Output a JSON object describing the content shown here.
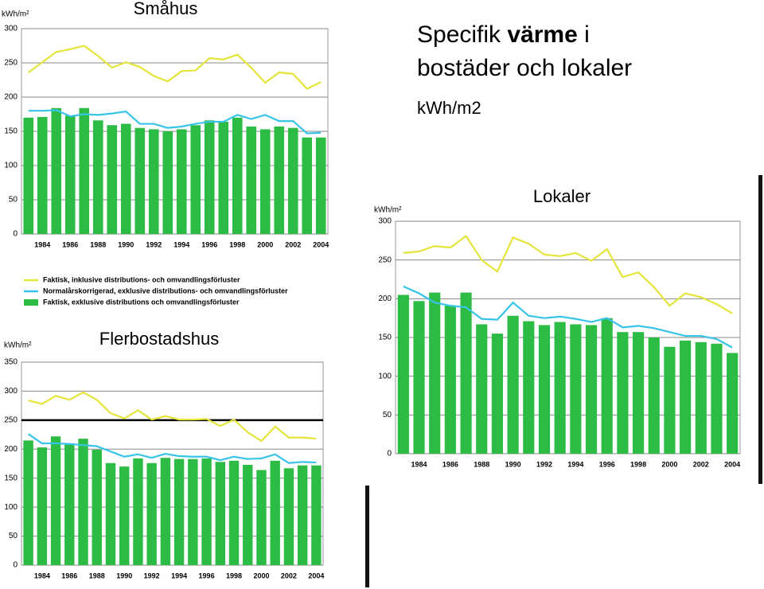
{
  "heading": {
    "line1": [
      "Specifik ",
      "värme",
      " i"
    ],
    "line2": "bostäder och lokaler",
    "unit": "kWh/m2"
  },
  "chart_data": [
    {
      "type": "bar",
      "title": "Småhus",
      "y_unit": "kWh/m²",
      "categories": [
        null,
        "1984",
        null,
        "1986",
        null,
        "1988",
        null,
        "1990",
        null,
        "1992",
        null,
        "1994",
        null,
        "1996",
        null,
        "1998",
        null,
        "2000",
        null,
        "2002",
        null,
        "2004"
      ],
      "ylim": [
        0,
        300
      ],
      "yticks": [
        0,
        50,
        100,
        150,
        200,
        250,
        300
      ],
      "grid": true,
      "series": [
        {
          "name": "Faktisk, inklusive distributions- och omvandlingsförluster",
          "type": "line",
          "color": "#e4e43a",
          "values": [
            236,
            251,
            266,
            270,
            275,
            260,
            243,
            251,
            244,
            231,
            223,
            238,
            239,
            257,
            255,
            262,
            243,
            221,
            236,
            234,
            212,
            222
          ]
        },
        {
          "name": "Normalårskorrigerad, exklusive distributions- och omvandlingsförluster",
          "type": "line",
          "color": "#38c4e8",
          "values": [
            180,
            180,
            181,
            172,
            175,
            174,
            176,
            179,
            161,
            161,
            155,
            157,
            161,
            164,
            164,
            174,
            168,
            174,
            165,
            165,
            147,
            148
          ]
        },
        {
          "name": "Faktisk, exklusive distributions och omvandlingsförluster",
          "type": "bar",
          "color": "#2cbc45",
          "values": [
            170,
            171,
            184,
            173,
            184,
            166,
            159,
            161,
            155,
            153,
            150,
            153,
            159,
            166,
            164,
            170,
            157,
            153,
            157,
            155,
            141,
            141
          ]
        }
      ]
    },
    {
      "type": "bar",
      "title": "Flerbostadshus",
      "y_unit": "kWh/m²",
      "categories": [
        null,
        "1984",
        null,
        "1986",
        null,
        "1988",
        null,
        "1990",
        null,
        "1992",
        null,
        "1994",
        null,
        "1996",
        null,
        "1998",
        null,
        "2000",
        null,
        "2002",
        null,
        "2004"
      ],
      "ylim": [
        0,
        350
      ],
      "yticks": [
        0,
        50,
        100,
        150,
        200,
        250,
        300,
        350
      ],
      "grid": true,
      "reference_line": 250,
      "series": [
        {
          "type": "line",
          "color": "#e4e43a",
          "values": [
            284,
            278,
            292,
            285,
            298,
            285,
            262,
            253,
            267,
            251,
            257,
            251,
            251,
            252,
            240,
            251,
            229,
            214,
            239,
            220,
            220,
            218
          ]
        },
        {
          "type": "line",
          "color": "#38c4e8",
          "values": [
            226,
            210,
            210,
            209,
            207,
            205,
            196,
            187,
            191,
            185,
            192,
            188,
            187,
            187,
            181,
            187,
            183,
            184,
            191,
            176,
            178,
            177
          ]
        },
        {
          "type": "bar",
          "color": "#2cbc45",
          "values": [
            215,
            203,
            222,
            210,
            218,
            199,
            176,
            170,
            184,
            176,
            185,
            183,
            183,
            184,
            178,
            180,
            173,
            164,
            180,
            167,
            172,
            172
          ]
        }
      ]
    },
    {
      "type": "bar",
      "title": "Lokaler",
      "y_unit": "kWh/m²",
      "categories": [
        null,
        "1984",
        null,
        "1986",
        null,
        "1988",
        null,
        "1990",
        null,
        "1992",
        null,
        "1994",
        null,
        "1996",
        null,
        "1998",
        null,
        "2000",
        null,
        "2002",
        null,
        "2004"
      ],
      "ylim": [
        0,
        300
      ],
      "yticks": [
        0,
        50,
        100,
        150,
        200,
        250,
        300
      ],
      "grid": true,
      "series": [
        {
          "type": "line",
          "color": "#e4e43a",
          "values": [
            259,
            261,
            268,
            266,
            281,
            250,
            235,
            279,
            271,
            257,
            255,
            259,
            249,
            264,
            228,
            234,
            215,
            191,
            207,
            202,
            193,
            181
          ]
        },
        {
          "type": "line",
          "color": "#38c4e8",
          "values": [
            216,
            207,
            195,
            191,
            189,
            174,
            173,
            195,
            178,
            175,
            177,
            174,
            170,
            175,
            163,
            165,
            162,
            157,
            152,
            152,
            148,
            137
          ]
        },
        {
          "type": "bar",
          "color": "#2cbc45",
          "values": [
            205,
            197,
            208,
            191,
            208,
            167,
            155,
            178,
            171,
            166,
            170,
            167,
            166,
            175,
            157,
            157,
            150,
            138,
            146,
            144,
            142,
            130
          ]
        }
      ]
    }
  ]
}
